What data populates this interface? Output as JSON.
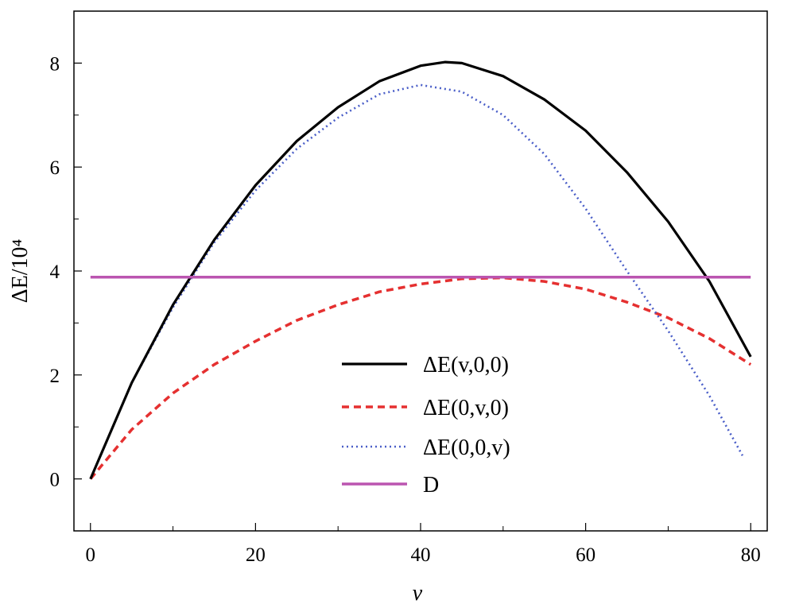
{
  "chart_data": {
    "type": "line",
    "title": "",
    "xlabel": "v",
    "ylabel": "ΔE/10⁴",
    "xlim": [
      -2,
      82
    ],
    "ylim": [
      -1,
      9
    ],
    "xticks": [
      0,
      20,
      40,
      60,
      80
    ],
    "xtick_labels": [
      "0",
      "20",
      "40",
      "60",
      "80"
    ],
    "yticks": [
      0,
      2,
      4,
      6,
      8
    ],
    "ytick_labels": [
      "0",
      "2",
      "4",
      "6",
      "8"
    ],
    "grid": false,
    "legend_position": "lower-center",
    "series": [
      {
        "name": "ΔE(v,0,0)",
        "color": "#000000",
        "style": "solid",
        "x": [
          0,
          5,
          10,
          15,
          20,
          25,
          30,
          35,
          40,
          43,
          45,
          50,
          55,
          60,
          65,
          70,
          75,
          80
        ],
        "y": [
          0.0,
          1.85,
          3.35,
          4.6,
          5.65,
          6.5,
          7.15,
          7.65,
          7.95,
          8.02,
          8.0,
          7.75,
          7.3,
          6.7,
          5.9,
          4.95,
          3.8,
          2.35
        ]
      },
      {
        "name": "ΔE(0,v,0)",
        "color": "#e53030",
        "style": "dashed",
        "x": [
          0,
          5,
          10,
          15,
          20,
          25,
          30,
          35,
          40,
          45,
          50,
          55,
          60,
          65,
          70,
          75,
          80
        ],
        "y": [
          0.0,
          0.95,
          1.65,
          2.2,
          2.65,
          3.05,
          3.35,
          3.6,
          3.75,
          3.85,
          3.87,
          3.8,
          3.65,
          3.4,
          3.1,
          2.7,
          2.2
        ]
      },
      {
        "name": "ΔE(0,0,v)",
        "color": "#4a5ec8",
        "style": "dotted",
        "x": [
          0,
          5,
          10,
          15,
          20,
          25,
          30,
          35,
          40,
          45,
          50,
          55,
          60,
          65,
          70,
          75,
          79
        ],
        "y": [
          0.0,
          1.85,
          3.3,
          4.55,
          5.55,
          6.35,
          6.95,
          7.4,
          7.58,
          7.45,
          7.0,
          6.25,
          5.2,
          4.0,
          2.85,
          1.6,
          0.45
        ]
      },
      {
        "name": "D",
        "color": "#bb55b0",
        "style": "solid",
        "x": [
          0,
          80
        ],
        "y": [
          3.88,
          3.88
        ]
      }
    ]
  }
}
